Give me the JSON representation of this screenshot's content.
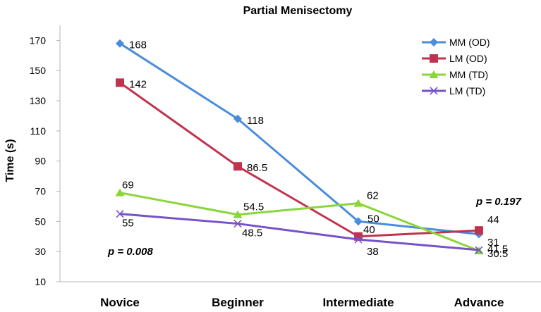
{
  "chart_data": {
    "type": "line",
    "title": "Partial Menisectomy",
    "xlabel": "",
    "ylabel": "Time (s)",
    "categories": [
      "Novice",
      "Beginner",
      "Intermediate",
      "Advance"
    ],
    "ylim": [
      10,
      180
    ],
    "yticks": [
      "10",
      "30",
      "50",
      "70",
      "90",
      "110",
      "130",
      "150",
      "170"
    ],
    "series": [
      {
        "name": "MM (OD)",
        "color": "#4a8ddc",
        "marker": "diamond",
        "values": [
          168,
          118,
          50,
          41.5
        ],
        "labels": [
          "168",
          "118",
          "50",
          "41.5"
        ]
      },
      {
        "name": "LM (OD)",
        "color": "#c0334d",
        "marker": "square",
        "values": [
          142,
          86.5,
          40,
          44
        ],
        "labels": [
          "142",
          "86.5",
          "40",
          "44"
        ]
      },
      {
        "name": "MM (TD)",
        "color": "#8ad63a",
        "marker": "triangle",
        "values": [
          69,
          54.5,
          62,
          30.5
        ],
        "labels": [
          "69",
          "54.5",
          "62",
          "30.5"
        ]
      },
      {
        "name": "LM (TD)",
        "color": "#7752c8",
        "marker": "x",
        "values": [
          55,
          48.5,
          38,
          31
        ],
        "labels": [
          "55",
          "48.5",
          "38",
          "31"
        ]
      }
    ],
    "annotations": [
      "p = 0.008",
      "p = 0.197"
    ],
    "legend_position": "top-right",
    "grid": false
  }
}
